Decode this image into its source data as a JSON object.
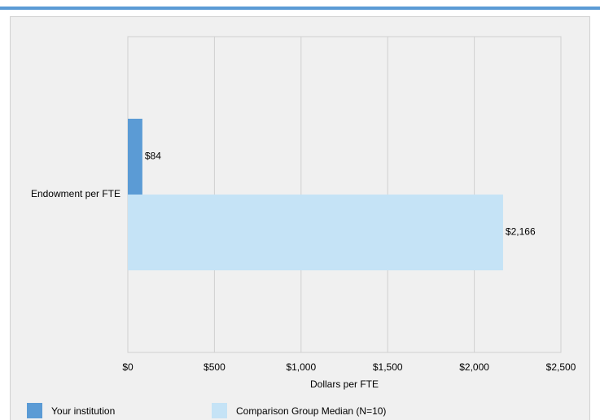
{
  "chart_data": {
    "type": "bar",
    "orientation": "horizontal",
    "categories": [
      "Endowment per FTE"
    ],
    "xlabel": "Dollars per FTE",
    "series": [
      {
        "name": "Your institution",
        "color": "#5b9bd5",
        "values": [
          84
        ],
        "value_labels": [
          "$84"
        ]
      },
      {
        "name": "Comparison Group Median (N=10)",
        "color": "#c5e3f6",
        "values": [
          2166
        ],
        "value_labels": [
          "$2,166"
        ]
      }
    ],
    "xlim": [
      0,
      2500
    ],
    "xticks": [
      {
        "value": 0,
        "label": "$0"
      },
      {
        "value": 500,
        "label": "$500"
      },
      {
        "value": 1000,
        "label": "$1,000"
      },
      {
        "value": 1500,
        "label": "$1,500"
      },
      {
        "value": 2000,
        "label": "$2,000"
      },
      {
        "value": 2500,
        "label": "$2,500"
      }
    ],
    "grid": true,
    "legend": "bottom"
  }
}
